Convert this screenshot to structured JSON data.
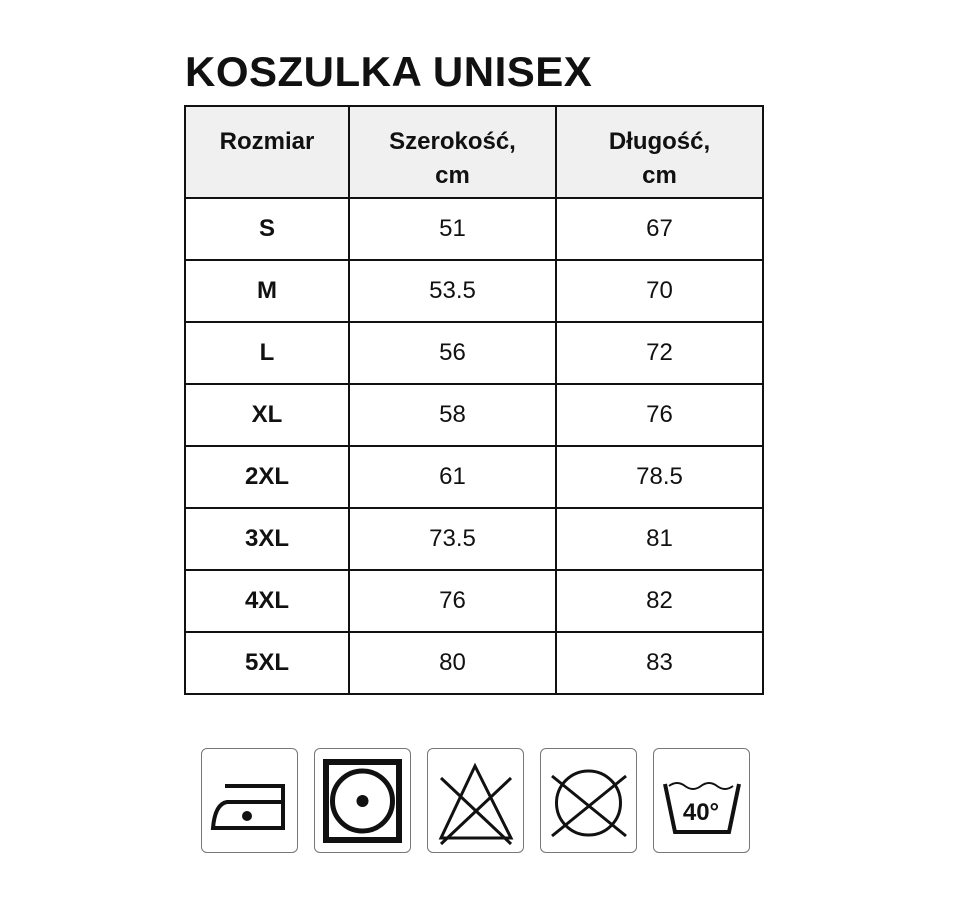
{
  "title": "KOSZULKA UNISEX",
  "table": {
    "headers": [
      "Rozmiar",
      "Szerokość,\ncm",
      "Długość,\ncm"
    ],
    "header_lines": [
      [
        "Rozmiar"
      ],
      [
        "Szerokość,",
        "cm"
      ],
      [
        "Długość,",
        "cm"
      ]
    ],
    "rows": [
      [
        "S",
        "51",
        "67"
      ],
      [
        "M",
        "53.5",
        "70"
      ],
      [
        "L",
        "56",
        "72"
      ],
      [
        "XL",
        "58",
        "76"
      ],
      [
        "2XL",
        "61",
        "78.5"
      ],
      [
        "3XL",
        "73.5",
        "81"
      ],
      [
        "4XL",
        "76",
        "82"
      ],
      [
        "5XL",
        "80",
        "83"
      ]
    ]
  },
  "care_icons": [
    {
      "icon": "iron-low-temperature-icon"
    },
    {
      "icon": "tumble-dry-icon"
    },
    {
      "icon": "do-not-bleach-icon"
    },
    {
      "icon": "do-not-dry-clean-icon"
    },
    {
      "icon": "wash-40-icon",
      "label": "40°"
    }
  ]
}
